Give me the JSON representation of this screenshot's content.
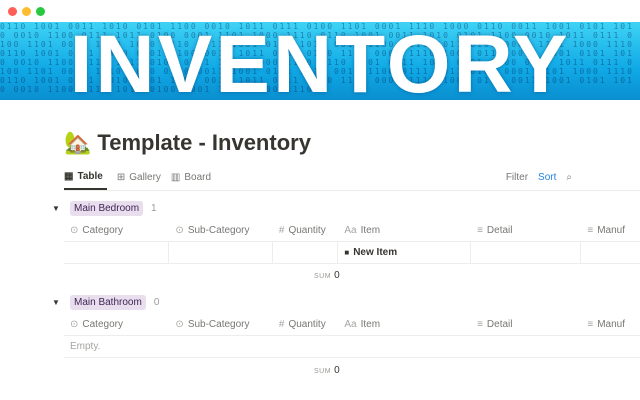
{
  "window": {
    "controls": [
      {
        "name": "close",
        "color": "#ff5f57"
      },
      {
        "name": "minimize",
        "color": "#febc2e"
      },
      {
        "name": "maximize",
        "color": "#28c840"
      }
    ]
  },
  "banner": {
    "text": "INVENTORY",
    "bits": "0110 1001 0011 1010 0101 1100 0010 1011 0111 0100 1101 0001 1110 1000 0110 0011 1001 0101 1010 0010 1100 0111 1011 0100 0001 1101 1000 1110 0110 1001 0011 1010 0101 1100 0010 1011 0111 0100 1101 0001 1110 1000 0110 0011 1001 0101 1010 0010 1100 0111 1011 0100 0001 1101 1000 1110 0110 1001 0011 1010 0101 1100 0010 1011 0111 0100 1101 0001 1110 1000 0110 0011 1001 0101 1010 0010 1100 0111 1011 0100 0001 1101 1000 1110 0110 1001 0011 1010 0101 1100 0010 1011 0111 0100 1101 0001 1110 1000 0110 0011 1001 0101 1010 0010 1100 0111 1011 0100 0001 1101 1000 1110 0110 1001 0011 1010 0101 1100 0010 1011 0111 0100 1101 0001 1110 1000 0110 0011 1001 0101 1010 0010 1100 0111 1011 0100 0001 1101 1000 1110"
  },
  "page": {
    "icon": "🏡",
    "title": "Template - Inventory"
  },
  "views": {
    "tabs": [
      {
        "label": "Table",
        "icon": "table-icon",
        "active": true
      },
      {
        "label": "Gallery",
        "icon": "gallery-icon"
      },
      {
        "label": "Board",
        "icon": "board-icon"
      }
    ],
    "filter": "Filter",
    "sort": "Sort",
    "search_icon": "search-icon"
  },
  "columns": [
    {
      "label": "Category",
      "icon": "select-icon"
    },
    {
      "label": "Sub-Category",
      "icon": "select-icon"
    },
    {
      "label": "Quantity",
      "icon": "number-icon"
    },
    {
      "label": "Item",
      "icon": "title-icon"
    },
    {
      "label": "Detail",
      "icon": "text-icon"
    },
    {
      "label": "Manuf",
      "icon": "text-icon"
    }
  ],
  "groups": [
    {
      "name": "Main Bedroom",
      "count": "1",
      "rows": [
        {
          "item": "New Item"
        }
      ],
      "sum_label": "SUM",
      "sum": "0"
    },
    {
      "name": "Main Bathroom",
      "count": "0",
      "empty": "Empty.",
      "sum_label": "SUM",
      "sum": "0"
    }
  ]
}
